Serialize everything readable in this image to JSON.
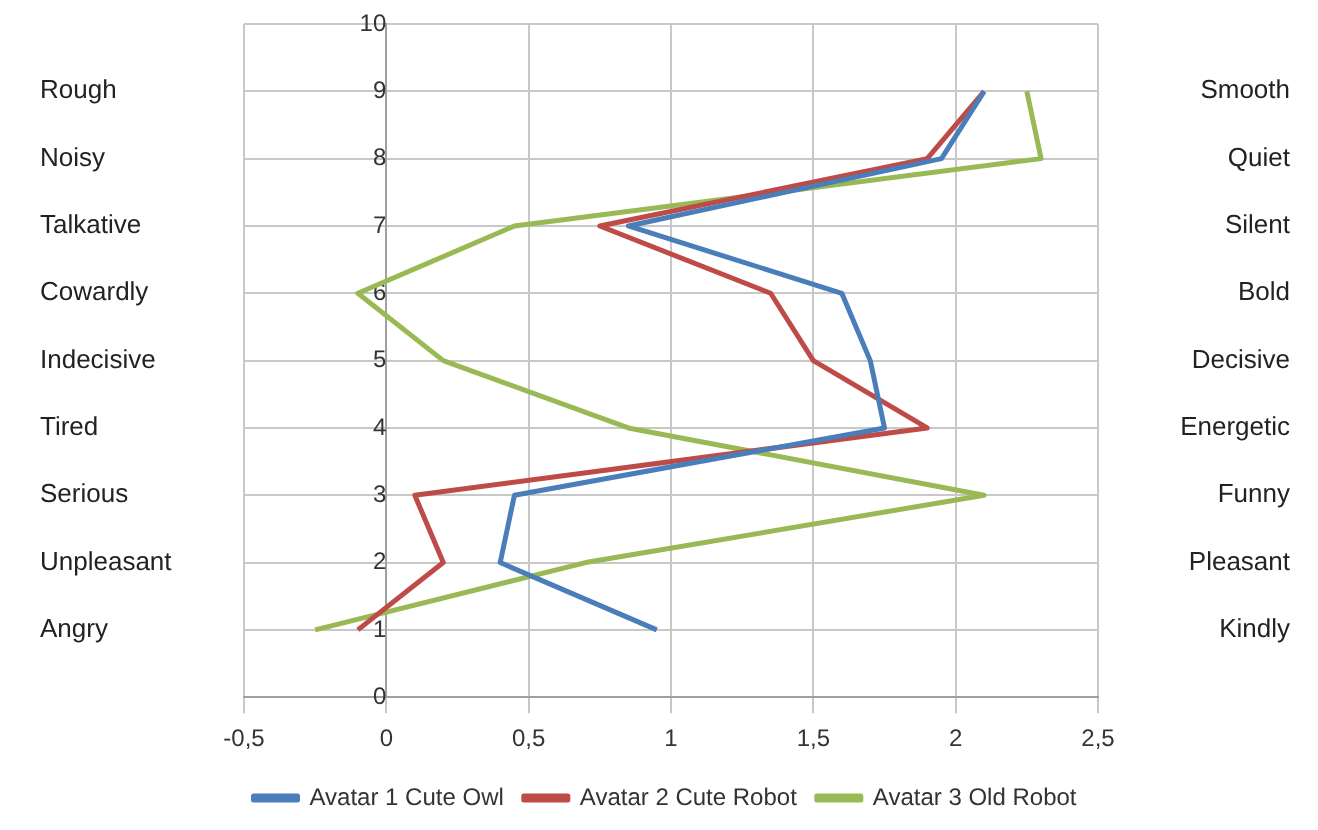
{
  "chart_data": {
    "type": "line",
    "xlim": [
      -0.5,
      2.5
    ],
    "ylim": [
      0,
      10
    ],
    "xticks": [
      {
        "value": -0.5,
        "label": "-0,5"
      },
      0,
      {
        "value": 0.5,
        "label": "0,5"
      },
      1,
      {
        "value": 1.5,
        "label": "1,5"
      },
      2,
      {
        "value": 2.5,
        "label": "2,5"
      }
    ],
    "yticks": [
      0,
      1,
      2,
      3,
      4,
      5,
      6,
      7,
      8,
      9,
      10
    ],
    "grid": true,
    "legend": "bottom",
    "marker": "none",
    "line_style": "solid",
    "series": [
      {
        "name": "Avatar 1 Cute Owl",
        "color": "#4a7ebb",
        "x": [
          0.95,
          0.4,
          0.45,
          1.75,
          1.7,
          1.6,
          0.85,
          1.95,
          2.1
        ],
        "values": [
          1,
          2,
          3,
          4,
          5,
          6,
          7,
          8,
          9
        ]
      },
      {
        "name": "Avatar 2 Cute Robot",
        "color": "#be4b48",
        "x": [
          -0.1,
          0.2,
          0.1,
          1.9,
          1.5,
          1.35,
          0.75,
          1.9,
          2.1
        ],
        "values": [
          1,
          2,
          3,
          4,
          5,
          6,
          7,
          8,
          9
        ]
      },
      {
        "name": "Avatar 3 Old Robot",
        "color": "#98b954",
        "x": [
          -0.25,
          0.7,
          2.1,
          0.85,
          0.2,
          -0.1,
          0.45,
          2.3,
          2.25
        ],
        "values": [
          1,
          2,
          3,
          4,
          5,
          6,
          7,
          8,
          9
        ]
      }
    ],
    "y_categories": [
      null,
      "Rough",
      "Noisy",
      "Talkative",
      "Cowardly",
      "Indecisive",
      "Tired",
      "Serious",
      "Unpleasant",
      "Angry",
      null
    ],
    "y2_categories": [
      null,
      "Smooth",
      "Quiet",
      "Silent",
      "Bold",
      "Decisive",
      "Energetic",
      "Funny",
      "Pleasant",
      "Kindly",
      null
    ]
  }
}
